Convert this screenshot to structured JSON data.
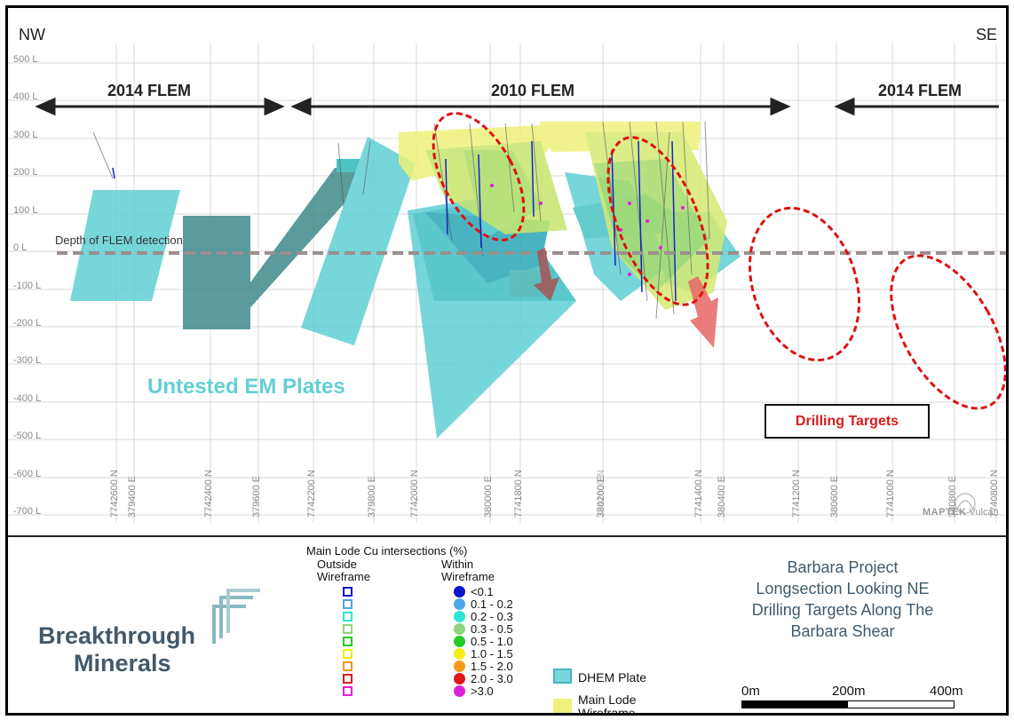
{
  "section": {
    "direction_left": "NW",
    "direction_right": "SE",
    "flem_labels": [
      "2014 FLEM",
      "2010 FLEM",
      "2014 FLEM"
    ],
    "elevation_labels": [
      "500 L",
      "400 L",
      "300 L",
      "200 L",
      "100 L",
      "0 L",
      "-100 L",
      "-200 L",
      "-300 L",
      "-400 L",
      "-500 L",
      "-600 L",
      "-700 L"
    ],
    "coordinate_labels": [
      "7742600 N",
      "379400 E",
      "7742400 N",
      "379600 E",
      "7742200 N",
      "379800 E",
      "7742000 N",
      "380000 E",
      "7741800 N",
      "380200 E",
      "7741600 N",
      "7741400 N",
      "380400 E",
      "7741200 N",
      "380600 E",
      "7741000 N",
      "380800 E",
      "7740800 N"
    ],
    "depth_label": "Depth of FLEM detection",
    "untested_label": "Untested EM Plates",
    "targets_label": "Drilling Targets",
    "watermark_brand": "MAPTEK",
    "watermark_product": "Vulcan",
    "colors": {
      "dhem_plate": "#5fcfd4",
      "dhem_plate_dark": "#3f8a8a",
      "wireframe": "#eef27a",
      "target_ellipse": "#dd1111",
      "depth_line": "#9b8f8f",
      "arrow": "#e06060"
    }
  },
  "legend": {
    "title": "Main Lode Cu intersections (%)",
    "outside_header": [
      "Outside",
      "Wireframe"
    ],
    "within_header": [
      "Within",
      "Wireframe"
    ],
    "grades": [
      {
        "label": "<0.1",
        "color": "#0a14c8"
      },
      {
        "label": "0.1 - 0.2",
        "color": "#4da6e8"
      },
      {
        "label": "0.2 - 0.3",
        "color": "#2ee6d0"
      },
      {
        "label": "0.3 - 0.5",
        "color": "#8ed47a"
      },
      {
        "label": "0.5 - 1.0",
        "color": "#22cc22"
      },
      {
        "label": "1.0 - 1.5",
        "color": "#f2ee10"
      },
      {
        "label": "1.5 - 2.0",
        "color": "#f39a1c"
      },
      {
        "label": "2.0 - 3.0",
        "color": "#e01818"
      },
      {
        "label": ">3.0",
        "color": "#e020d8"
      }
    ],
    "dhem_label": "DHEM Plate",
    "wireframe_label": [
      "Main Lode",
      "Wireframe"
    ]
  },
  "logo": {
    "line1": "Breakthrough",
    "line2": "Minerals"
  },
  "project": {
    "title_lines": [
      "Barbara Project",
      "Longsection Looking NE",
      "Drilling Targets Along The",
      "Barbara Shear"
    ]
  },
  "scale": {
    "labels": [
      "0m",
      "200m",
      "400m"
    ]
  }
}
